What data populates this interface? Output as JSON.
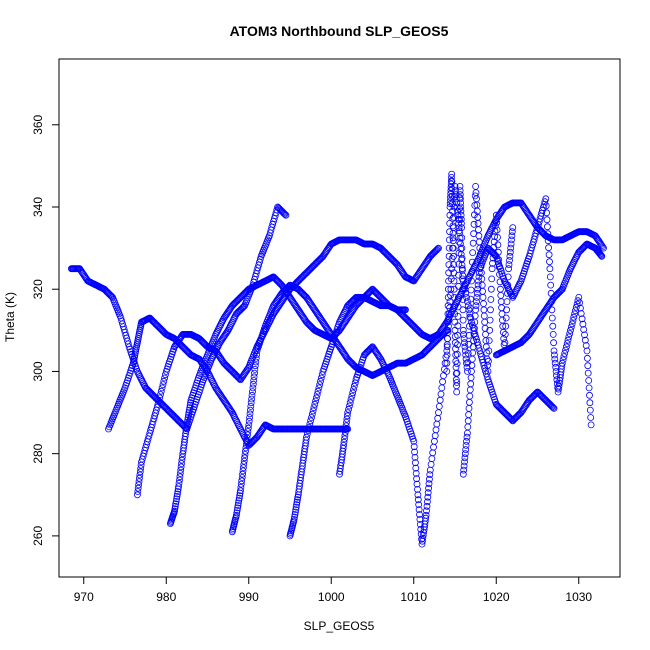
{
  "chart_data": {
    "type": "scatter",
    "title": "ATOM3 Northbound SLP_GEOS5",
    "xlabel": "SLP_GEOS5",
    "ylabel": "Theta (K)",
    "xlim": [
      967,
      1035
    ],
    "ylim": [
      250,
      376
    ],
    "xticks": [
      970,
      980,
      990,
      1000,
      1010,
      1020,
      1030
    ],
    "yticks": [
      260,
      280,
      300,
      320,
      340,
      360
    ],
    "marker": "open-circle",
    "color": "#0000ff",
    "series": [
      {
        "x": [
          968.5,
          969.5,
          970.5,
          971.5,
          972.5,
          973.5,
          974.5,
          975.5,
          976.5,
          977.5,
          978.5,
          979.5,
          980.5,
          981.5,
          982.5,
          983.5,
          984.5,
          985.5,
          986.5,
          987.5,
          988.5,
          989.5,
          990.5,
          991.5,
          992.5,
          993.5,
          994.5
        ],
        "y": [
          325,
          325,
          322,
          321,
          320,
          318,
          313,
          306,
          300,
          296,
          294,
          292,
          290,
          288,
          286,
          292,
          298,
          303,
          307,
          310,
          314,
          316,
          321,
          328,
          333,
          340,
          338
        ]
      },
      {
        "x": [
          973,
          974,
          975,
          976,
          976.5,
          977,
          978,
          979,
          980,
          981,
          982,
          983,
          984,
          985,
          986,
          987,
          988,
          989,
          990,
          991,
          992,
          993,
          994,
          995,
          996,
          997,
          998,
          999,
          1000,
          1001,
          1002
        ],
        "y": [
          286,
          291,
          296,
          302,
          307,
          312,
          313,
          311,
          309,
          308,
          306,
          304,
          303,
          300,
          296,
          293,
          290,
          286,
          282,
          284,
          287,
          286,
          286,
          286,
          286,
          286,
          286,
          286,
          286,
          286,
          286
        ]
      },
      {
        "x": [
          976.5,
          977,
          978,
          979,
          980,
          981,
          982,
          983,
          984,
          985,
          986,
          987,
          988,
          989,
          990,
          991,
          992,
          993,
          994,
          995,
          996,
          997,
          998,
          999,
          1000,
          1001,
          1002,
          1003,
          1004,
          1005,
          1006,
          1007,
          1008,
          1009,
          1010,
          1011,
          1012,
          1013
        ],
        "y": [
          270,
          278,
          285,
          292,
          300,
          306,
          309,
          309,
          308,
          306,
          305,
          302,
          300,
          298,
          301,
          306,
          310,
          314,
          317,
          320,
          322,
          324,
          326,
          328,
          331,
          332,
          332,
          332,
          331,
          331,
          330,
          328,
          326,
          323,
          322,
          325,
          328,
          330
        ]
      },
      {
        "x": [
          980.5,
          981,
          981.5,
          982,
          982.5,
          983,
          984,
          985,
          986,
          987,
          988,
          989,
          990,
          991,
          992,
          993,
          994,
          995,
          996,
          997,
          998,
          999,
          1000,
          1001,
          1002,
          1003,
          1004,
          1005,
          1006,
          1007,
          1008,
          1009
        ],
        "y": [
          263,
          266,
          272,
          280,
          287,
          293,
          299,
          304,
          309,
          313,
          316,
          318,
          320,
          321,
          322,
          323,
          321,
          318,
          315,
          312,
          310,
          309,
          308,
          310,
          313,
          316,
          318,
          320,
          318,
          316,
          315,
          315
        ]
      },
      {
        "x": [
          988,
          988.5,
          989,
          989.5,
          990,
          990.5,
          991,
          992,
          993,
          994,
          995,
          996,
          997,
          998,
          999,
          1000,
          1001,
          1002,
          1003,
          1004,
          1005,
          1006,
          1007,
          1008,
          1009,
          1010,
          1011,
          1012,
          1013,
          1014
        ],
        "y": [
          261,
          265,
          271,
          279,
          287,
          296,
          305,
          311,
          316,
          319,
          321,
          320,
          318,
          315,
          312,
          309,
          306,
          303,
          301,
          300,
          299,
          300,
          301,
          302,
          302,
          303,
          304,
          306,
          308,
          310
        ]
      },
      {
        "x": [
          995,
          995.5,
          996,
          996.5,
          997,
          998,
          999,
          1000,
          1001,
          1002,
          1003,
          1004,
          1005,
          1006,
          1007,
          1008,
          1009,
          1010,
          1011,
          1012,
          1013,
          1014,
          1015,
          1016,
          1017,
          1018,
          1019,
          1020,
          1021,
          1022,
          1023,
          1024,
          1025,
          1026,
          1027,
          1028,
          1029,
          1030,
          1031,
          1032,
          1033
        ],
        "y": [
          260,
          264,
          270,
          277,
          284,
          292,
          300,
          306,
          312,
          316,
          318,
          318,
          317,
          316,
          316,
          315,
          313,
          311,
          309,
          308,
          309,
          312,
          316,
          320,
          324,
          328,
          333,
          337,
          340,
          341,
          341,
          338,
          335,
          333,
          332,
          332,
          333,
          334,
          334,
          333,
          330
        ]
      },
      {
        "x": [
          1001,
          1001.5,
          1002,
          1003,
          1004,
          1005,
          1006,
          1007,
          1008,
          1009,
          1010,
          1010.5,
          1011,
          1011.5,
          1012,
          1013,
          1014,
          1014.5,
          1015,
          1015.5,
          1016,
          1017,
          1018,
          1019,
          1020,
          1021,
          1022,
          1023,
          1024,
          1025,
          1026,
          1027
        ],
        "y": [
          275,
          282,
          290,
          298,
          304,
          306,
          303,
          299,
          294,
          289,
          283,
          270,
          258,
          265,
          276,
          290,
          305,
          320,
          345,
          335,
          322,
          312,
          305,
          298,
          292,
          290,
          288,
          290,
          293,
          295,
          293,
          291
        ]
      },
      {
        "x": [
          1014,
          1014.2,
          1014.4,
          1014.6,
          1014.8,
          1015,
          1015.2,
          1015.4,
          1015.6,
          1015.8,
          1016,
          1016.5,
          1017,
          1017.5,
          1018,
          1018.5,
          1019,
          1019.5,
          1020,
          1020.5,
          1021,
          1021.5,
          1022
        ],
        "y": [
          300,
          320,
          340,
          348,
          330,
          310,
          295,
          318,
          345,
          335,
          310,
          300,
          322,
          345,
          330,
          315,
          300,
          325,
          338,
          320,
          305,
          325,
          335
        ]
      },
      {
        "x": [
          1016,
          1016.5,
          1017,
          1017.5,
          1018,
          1019,
          1020,
          1021,
          1022,
          1023,
          1024,
          1025,
          1026,
          1026.5,
          1027,
          1027.5,
          1028,
          1029,
          1030,
          1031,
          1031.5
        ],
        "y": [
          275,
          285,
          300,
          315,
          325,
          330,
          328,
          322,
          318,
          322,
          328,
          335,
          342,
          325,
          305,
          295,
          302,
          310,
          318,
          305,
          287
        ]
      },
      {
        "x": [
          1020,
          1021,
          1022,
          1023,
          1024,
          1025,
          1026,
          1027,
          1028,
          1029,
          1030,
          1031,
          1032,
          1032.8
        ],
        "y": [
          304,
          305,
          306,
          307,
          309,
          312,
          315,
          318,
          320,
          325,
          329,
          331,
          330,
          328
        ]
      }
    ]
  }
}
